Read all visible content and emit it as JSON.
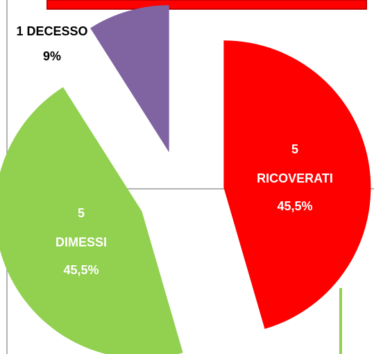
{
  "chart_data": {
    "type": "pie",
    "categories": [
      "RICOVERATI",
      "DIMESSI",
      "DECESSO"
    ],
    "counts": [
      5,
      5,
      1
    ],
    "values": [
      45.5,
      45.5,
      9
    ],
    "value_labels": [
      "45,5%",
      "45,5%",
      "9%"
    ],
    "colors": [
      "#ff0000",
      "#92d050",
      "#8064a2"
    ],
    "start_angle": 0,
    "exploded": true
  }
}
